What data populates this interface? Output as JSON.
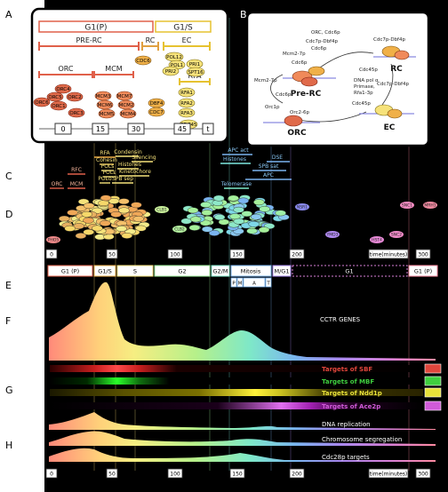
{
  "panel_letters": [
    "A",
    "B",
    "C",
    "D",
    "E",
    "F",
    "G",
    "H"
  ],
  "inset_a": {
    "phase_g1p": "G1(P)",
    "phase_g1s": "G1/S",
    "group_prerc": "PRE-RC",
    "group_rc": "RC",
    "group_ec": "EC",
    "group_orc": "ORC",
    "group_mcm": "MCM",
    "group_rfa": "RFA",
    "orc_proteins": [
      "ORC6",
      "ORC4",
      "ORC5",
      "ORC2",
      "ORC1",
      "ORC3"
    ],
    "mcm_proteins": [
      "MCM3",
      "MCM6",
      "MCM5",
      "MCM7",
      "MCM2",
      "MCM4"
    ],
    "rc_proteins": [
      "CDC6",
      "DBF4",
      "CDC7"
    ],
    "ec_proteins": [
      "POL12",
      "POL1",
      "PRI1",
      "PRI2",
      "SPT16",
      "RFA1",
      "RFA2",
      "RFA3",
      "CDC45"
    ],
    "time_ticks": [
      "0",
      "15",
      "30",
      "45",
      "t"
    ]
  },
  "inset_b": {
    "nodes": {
      "prerc": "Pre-RC",
      "rc": "RC",
      "orc": "ORC",
      "ec": "EC"
    },
    "labels": {
      "orc_cdc6p": "ORC, Cdc6p",
      "cdc7_dbf4_top": "Cdc7p-Dbf4p",
      "cdc7_dbf4_left": "Cdc7p-Dbf4p",
      "mcm27_top": "Mcm2-7p",
      "mcm27_left": "Mcm2-7p",
      "cdc6p_a": "Cdc6p",
      "cdc6p_b": "Cdc6p",
      "cdc6p_c": "Cdc6p",
      "cdc45p_a": "Cdc45p",
      "cdc45p_b": "Cdc45p",
      "dna_pol": "DNA pol α",
      "primase": "Primase,",
      "rfa": "Rfa1-3p",
      "orc1p": "Orc1p",
      "orc26p": "Orc2-6p",
      "cdc7_dbf4_right": "Cdc7p-Dbf4p"
    }
  },
  "panel_c": {
    "labels": [
      "ORC",
      "RFC",
      "MCM",
      "RFA",
      "Cohesin",
      "Condensin",
      "Silencing",
      "POLs",
      "Histones",
      "POLε",
      "Kinetochore",
      "POLδ",
      "SPB sep",
      "APC act",
      "DSE",
      "Histones",
      "SPB sat",
      "Telomerase",
      "APC"
    ]
  },
  "panel_d": {
    "sample_labels": [
      "PHO5",
      "CLB1",
      "CLB2",
      "NSR1",
      "YMD3",
      "SNC1",
      "MRH1",
      "SNC2",
      "HST4"
    ]
  },
  "time_axis": {
    "ticks": [
      "0",
      "50",
      "100",
      "150",
      "200",
      "300"
    ],
    "unit": "time(minutes)"
  },
  "panel_e": {
    "phases": [
      "G1 (P)",
      "G1/S",
      "S",
      "G2",
      "G2/M",
      "Mitosis",
      "M/G1",
      "G1",
      "G1 (P)"
    ],
    "subphases": [
      "P",
      "M",
      "A",
      "T"
    ]
  },
  "panel_f": {
    "title": "CCTR GENES"
  },
  "panel_g": {
    "tracks": [
      {
        "label": "Targets of SBF",
        "color": "#e0463c"
      },
      {
        "label": "Targets of MBF",
        "color": "#3fcf3f"
      },
      {
        "label": "Targets of Ndd1p",
        "color": "#e8e23a"
      },
      {
        "label": "Targets of Ace2p",
        "color": "#d05bd8"
      }
    ]
  },
  "panel_h": {
    "tracks": [
      "DNA replication",
      "Chromosome segregation",
      "Cdc28p targets"
    ]
  },
  "colors": {
    "background": "#000000",
    "inset": "#ffffff",
    "orc_node": "#e06a4a",
    "rc_node": "#f0b048",
    "ec_node": "#f6e27a"
  }
}
